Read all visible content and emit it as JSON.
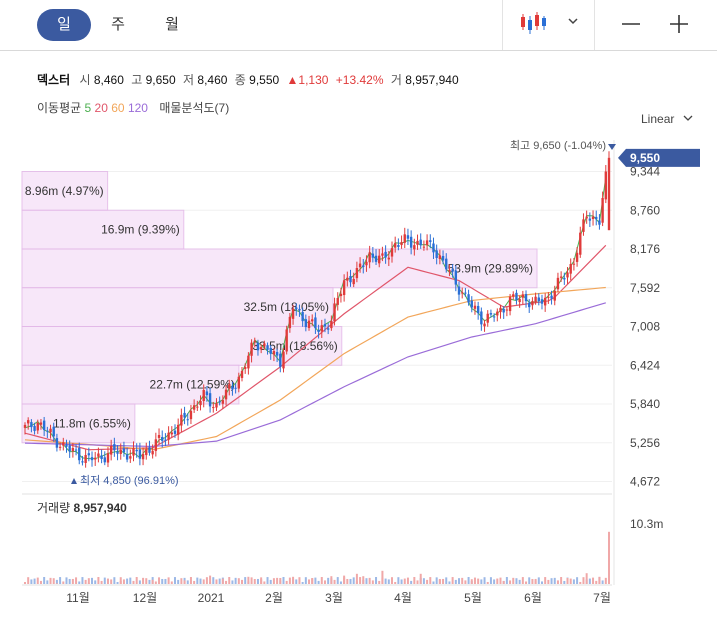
{
  "tabs": [
    {
      "label": "일",
      "active": true
    },
    {
      "label": "주",
      "active": false
    },
    {
      "label": "월",
      "active": false
    }
  ],
  "toolbar": {
    "chart_type_icon": "candlestick-icon",
    "dropdown_icon": "chevron-down-icon",
    "zoom_out_icon": "minus-icon",
    "zoom_in_icon": "plus-icon"
  },
  "quote": {
    "name": "덱스터",
    "open_label": "시",
    "open": "8,460",
    "high_label": "고",
    "high": "9,650",
    "low_label": "저",
    "low": "8,460",
    "close_label": "종",
    "close": "9,550",
    "change": "▲1,130",
    "change_pct": "+13.42%",
    "volume_label": "거",
    "volume": "8,957,940"
  },
  "indicators": {
    "ma_label": "이동평균",
    "ma_periods": [
      {
        "label": "5",
        "color": "#4caf50"
      },
      {
        "label": "20",
        "color": "#e0566a"
      },
      {
        "label": "60",
        "color": "#f2a65a"
      },
      {
        "label": "120",
        "color": "#9a6cd8"
      }
    ],
    "sales_analysis_label": "매물분석도(7)"
  },
  "scale_mode": "Linear",
  "colors": {
    "up": "#e03a3a",
    "down": "#2a6fd6",
    "accent": "#3b5aa0",
    "profile": "#f6e3f8",
    "profile_border": "#e3b8e8"
  },
  "chart_data": {
    "type": "candlestick",
    "y_ticks": [
      "4,672",
      "5,256",
      "5,840",
      "6,424",
      "7,008",
      "7,592",
      "8,176",
      "8,760",
      "9,344"
    ],
    "ylim": [
      4672,
      9650
    ],
    "x_ticks": [
      "11월",
      "12월",
      "2021",
      "2월",
      "3월",
      "4월",
      "5월",
      "6월",
      "7월"
    ],
    "current_price_label": "9,550",
    "high_annotation": "최고 9,650 (-1.04%)",
    "low_annotation": "최저 4,850 (96.91%)",
    "volume_title": "거래량",
    "volume_value": "8,957,940",
    "volume_axis_max_label": "10.3m",
    "volume_profile": [
      {
        "label": "8.96m (4.97%)",
        "price_low": 8760,
        "price_high": 9344,
        "pct": 4.97
      },
      {
        "label": "16.9m (9.39%)",
        "price_low": 8176,
        "price_high": 8760,
        "pct": 9.39
      },
      {
        "label": "53.9m (29.89%)",
        "price_low": 7592,
        "price_high": 8176,
        "pct": 29.89
      },
      {
        "label": "32.5m (18.05%)",
        "price_low": 7008,
        "price_high": 7592,
        "pct": 18.05
      },
      {
        "label": "33.5m (18.56%)",
        "price_low": 6424,
        "price_high": 7008,
        "pct": 18.56
      },
      {
        "label": "22.7m (12.59%)",
        "price_low": 5840,
        "price_high": 6424,
        "pct": 12.59
      },
      {
        "label": "11.8m (6.55%)",
        "price_low": 5256,
        "price_high": 5840,
        "pct": 6.55
      }
    ],
    "close_path": [
      [
        0,
        5480
      ],
      [
        4,
        5560
      ],
      [
        8,
        5380
      ],
      [
        12,
        5200
      ],
      [
        16,
        5100
      ],
      [
        20,
        5000
      ],
      [
        24,
        5050
      ],
      [
        28,
        5130
      ],
      [
        32,
        5100
      ],
      [
        36,
        5060
      ],
      [
        40,
        5200
      ],
      [
        44,
        5350
      ],
      [
        48,
        5500
      ],
      [
        52,
        5750
      ],
      [
        56,
        5950
      ],
      [
        60,
        5820
      ],
      [
        64,
        6050
      ],
      [
        68,
        6300
      ],
      [
        72,
        6800
      ],
      [
        76,
        6650
      ],
      [
        80,
        6500
      ],
      [
        84,
        7300
      ],
      [
        88,
        7100
      ],
      [
        92,
        6950
      ],
      [
        96,
        7100
      ],
      [
        100,
        7700
      ],
      [
        104,
        7800
      ],
      [
        108,
        8100
      ],
      [
        112,
        8000
      ],
      [
        116,
        8250
      ],
      [
        120,
        8300
      ],
      [
        124,
        8250
      ],
      [
        128,
        8200
      ],
      [
        132,
        7900
      ],
      [
        136,
        7600
      ],
      [
        140,
        7300
      ],
      [
        144,
        7100
      ],
      [
        148,
        7200
      ],
      [
        152,
        7400
      ],
      [
        156,
        7450
      ],
      [
        160,
        7350
      ],
      [
        164,
        7450
      ],
      [
        168,
        7700
      ],
      [
        172,
        8000
      ],
      [
        176,
        8700
      ],
      [
        180,
        8600
      ],
      [
        183,
        9550
      ]
    ],
    "ma_series": [
      {
        "period": "20",
        "values": [
          [
            0,
            5400
          ],
          [
            20,
            5150
          ],
          [
            40,
            5180
          ],
          [
            60,
            5700
          ],
          [
            80,
            6400
          ],
          [
            100,
            7200
          ],
          [
            120,
            7900
          ],
          [
            136,
            7700
          ],
          [
            150,
            7300
          ],
          [
            165,
            7400
          ],
          [
            183,
            8280
          ]
        ]
      },
      {
        "period": "60",
        "values": [
          [
            0,
            5300
          ],
          [
            20,
            5230
          ],
          [
            40,
            5150
          ],
          [
            60,
            5350
          ],
          [
            80,
            5900
          ],
          [
            100,
            6600
          ],
          [
            120,
            7150
          ],
          [
            140,
            7400
          ],
          [
            160,
            7500
          ],
          [
            183,
            7600
          ]
        ]
      },
      {
        "period": "120",
        "values": [
          [
            0,
            5250
          ],
          [
            40,
            5200
          ],
          [
            60,
            5280
          ],
          [
            80,
            5600
          ],
          [
            100,
            6100
          ],
          [
            120,
            6550
          ],
          [
            140,
            6850
          ],
          [
            160,
            7050
          ],
          [
            183,
            7380
          ]
        ]
      }
    ],
    "volume_bars": [
      [
        10,
        0.01
      ],
      [
        20,
        0.02
      ],
      [
        30,
        0.05
      ],
      [
        40,
        0.07
      ],
      [
        50,
        0.06
      ],
      [
        58,
        0.14
      ],
      [
        62,
        0.09
      ],
      [
        70,
        0.12
      ],
      [
        74,
        0.08
      ],
      [
        80,
        0.1
      ],
      [
        84,
        0.12
      ],
      [
        90,
        0.1
      ],
      [
        96,
        0.13
      ],
      [
        100,
        0.14
      ],
      [
        104,
        0.17
      ],
      [
        106,
        0.13
      ],
      [
        112,
        0.22
      ],
      [
        124,
        0.17
      ],
      [
        130,
        0.07
      ],
      [
        140,
        0.08
      ],
      [
        150,
        0.05
      ],
      [
        160,
        0.06
      ],
      [
        170,
        0.1
      ],
      [
        176,
        0.18
      ],
      [
        180,
        0.12
      ],
      [
        183,
        0.87
      ]
    ]
  }
}
